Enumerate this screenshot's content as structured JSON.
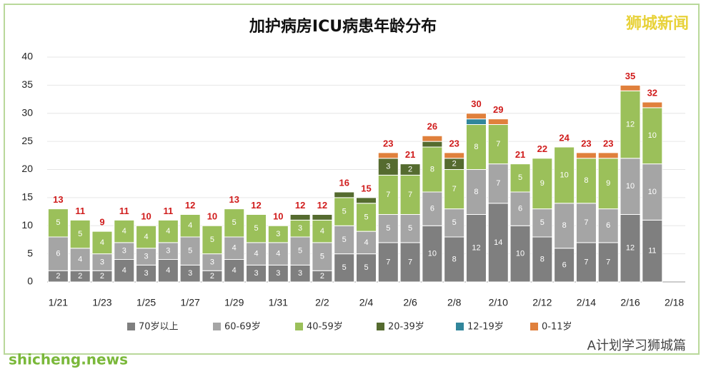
{
  "chart_data": {
    "type": "stacked-bar",
    "title": "加护病房ICU病患年龄分布",
    "watermark": "狮城新闻",
    "footer_left": "shicheng.news",
    "footer_right": "A计划学习狮城篇",
    "categories": [
      "1/21",
      null,
      "1/23",
      null,
      "1/25",
      null,
      "1/27",
      null,
      "1/29",
      null,
      "1/31",
      null,
      "2/2",
      null,
      "2/4",
      null,
      "2/6",
      null,
      "2/8",
      null,
      "2/10",
      null,
      "2/12",
      null,
      "2/14",
      null,
      "2/16",
      null,
      "2/18"
    ],
    "series": [
      {
        "name": "70岁以上",
        "color": "#7f7f7f",
        "values": [
          2,
          2,
          2,
          4,
          3,
          4,
          3,
          2,
          4,
          3,
          3,
          3,
          2,
          5,
          5,
          7,
          7,
          10,
          8,
          12,
          14,
          10,
          8,
          6,
          7,
          7,
          12,
          11,
          null
        ]
      },
      {
        "name": "60-69岁",
        "color": "#a5a5a5",
        "values": [
          6,
          4,
          3,
          3,
          3,
          3,
          5,
          3,
          4,
          4,
          4,
          5,
          5,
          5,
          4,
          5,
          5,
          6,
          5,
          8,
          7,
          6,
          5,
          8,
          7,
          6,
          10,
          10,
          null
        ]
      },
      {
        "name": "40-59岁",
        "color": "#9bc05a",
        "values": [
          5,
          5,
          4,
          4,
          4,
          4,
          4,
          5,
          5,
          5,
          3,
          3,
          4,
          5,
          5,
          7,
          7,
          8,
          7,
          8,
          7,
          5,
          9,
          10,
          8,
          9,
          12,
          10,
          null
        ]
      },
      {
        "name": "20-39岁",
        "color": "#556b2f",
        "values": [
          0,
          0,
          0,
          0,
          0,
          0,
          0,
          0,
          0,
          0,
          0,
          1,
          1,
          1,
          1,
          3,
          2,
          1,
          2,
          0,
          0,
          0,
          0,
          0,
          0,
          0,
          0,
          0,
          null
        ]
      },
      {
        "name": "12-19岁",
        "color": "#31869b",
        "values": [
          0,
          0,
          0,
          0,
          0,
          0,
          0,
          0,
          0,
          0,
          0,
          0,
          0,
          0,
          0,
          0,
          0,
          0,
          0,
          1,
          0,
          0,
          0,
          0,
          0,
          0,
          0,
          0,
          null
        ]
      },
      {
        "name": "0-11岁",
        "color": "#e0803c",
        "values": [
          0,
          0,
          0,
          0,
          0,
          0,
          0,
          0,
          0,
          0,
          0,
          0,
          0,
          0,
          0,
          1,
          0,
          1,
          1,
          1,
          1,
          0,
          0,
          0,
          1,
          1,
          1,
          1,
          null
        ]
      }
    ],
    "totals": [
      13,
      11,
      9,
      11,
      10,
      11,
      12,
      10,
      13,
      12,
      10,
      12,
      12,
      16,
      15,
      23,
      21,
      26,
      23,
      30,
      29,
      21,
      22,
      24,
      23,
      23,
      35,
      32,
      null
    ],
    "ylim": [
      0,
      40
    ],
    "yticks": [
      0,
      5,
      10,
      15,
      20,
      25,
      30,
      35,
      40
    ],
    "grid": true
  }
}
